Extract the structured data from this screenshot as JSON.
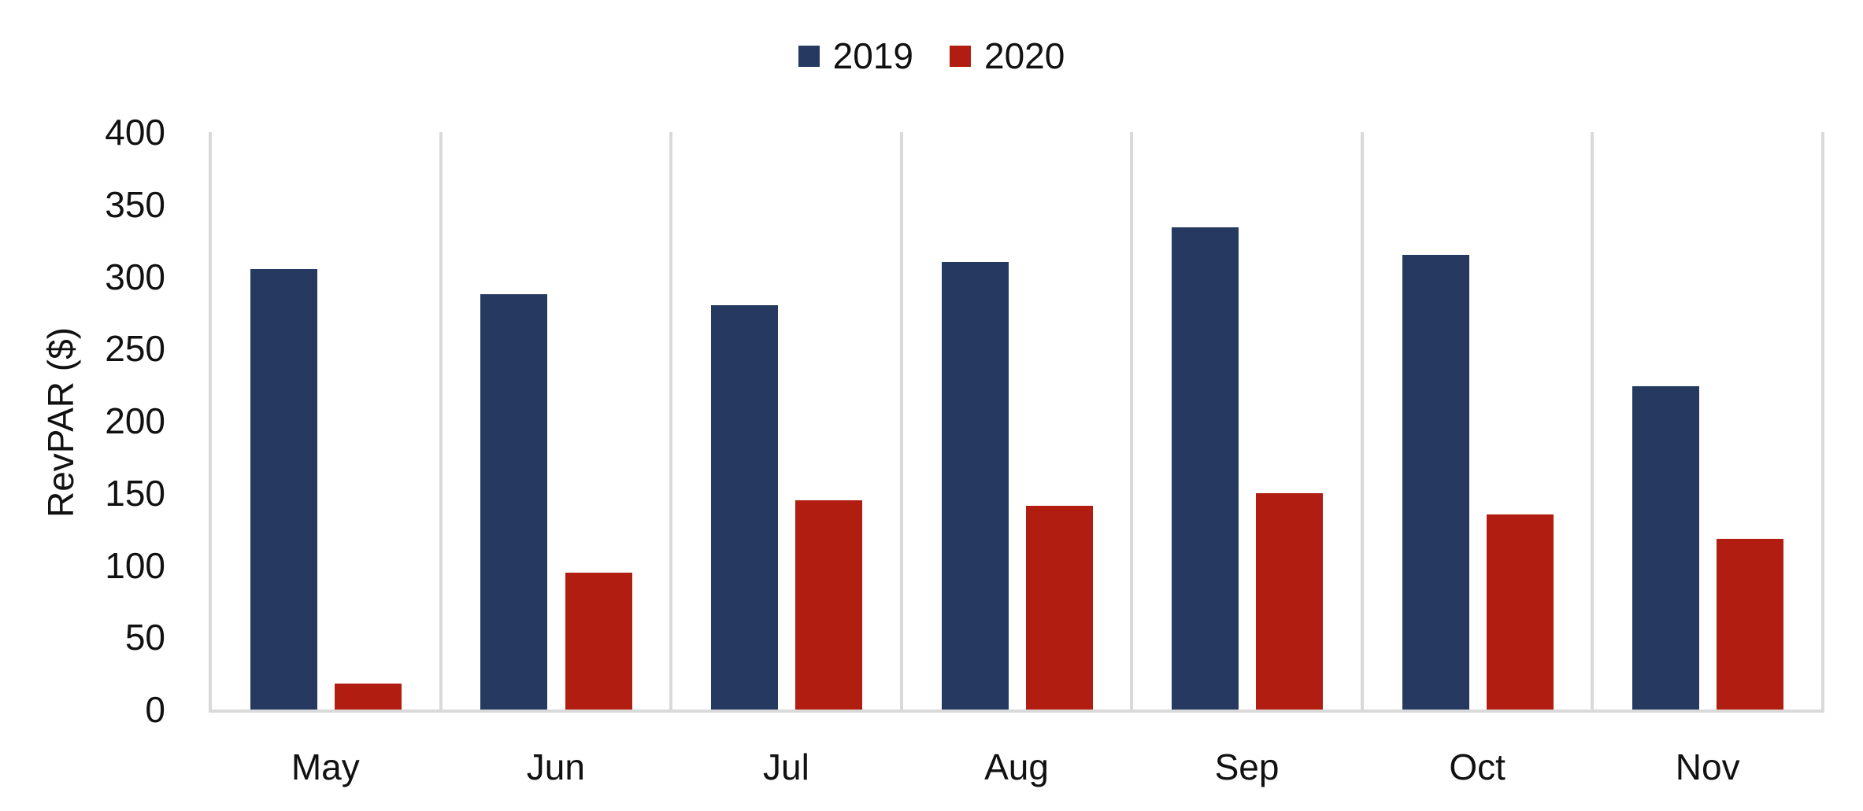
{
  "chart_data": {
    "type": "bar",
    "title": "",
    "ylabel": "RevPAR ($)",
    "xlabel": "",
    "categories": [
      "May",
      "Jun",
      "Jul",
      "Aug",
      "Sep",
      "Oct",
      "Nov"
    ],
    "series": [
      {
        "name": "2019",
        "color": "#263A61",
        "values": [
          305,
          288,
          280,
          310,
          334,
          315,
          224
        ]
      },
      {
        "name": "2020",
        "color": "#B11E11",
        "values": [
          18,
          95,
          145,
          141,
          150,
          135,
          118
        ]
      }
    ],
    "ylim": [
      0,
      400
    ],
    "yticks": [
      0,
      50,
      100,
      150,
      200,
      250,
      300,
      350,
      400
    ],
    "legend_position": "top-center",
    "grid": "vertical-category-gridlines-only",
    "gridline_color": "#D9D9D9",
    "axis_line_color": "#D9D9D9",
    "text_color": "#111111",
    "background_color": "#FFFFFF"
  }
}
